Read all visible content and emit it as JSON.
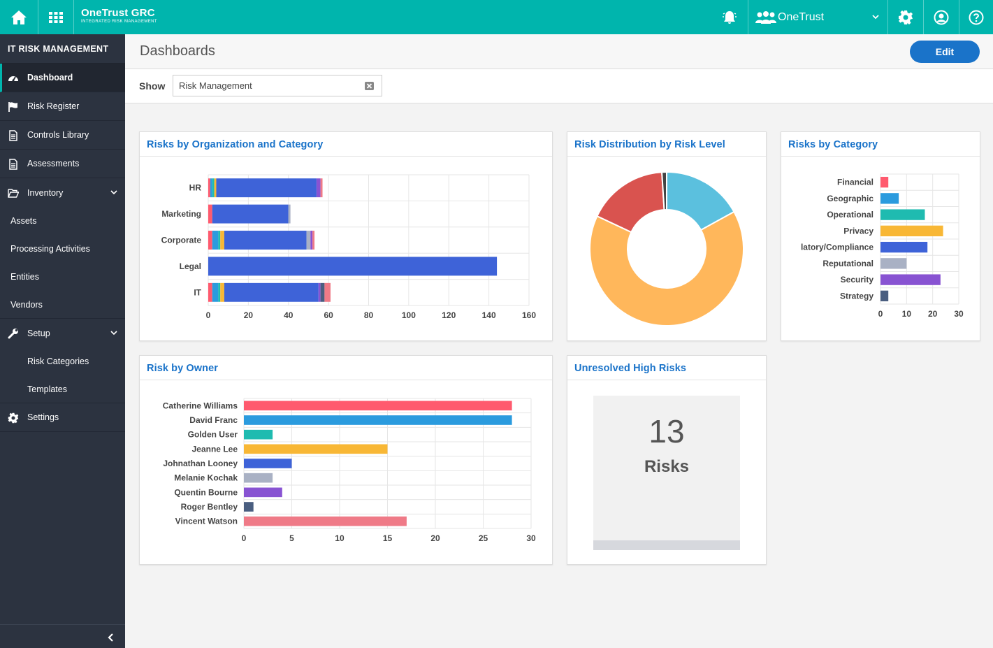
{
  "topbar": {
    "brand_name": "OneTrust GRC",
    "brand_tagline": "INTEGRATED RISK MANAGEMENT",
    "org_name": "OneTrust"
  },
  "sidebar": {
    "title": "IT RISK MANAGEMENT",
    "items": [
      {
        "label": "Dashboard"
      },
      {
        "label": "Risk Register"
      },
      {
        "label": "Controls Library"
      },
      {
        "label": "Assessments"
      },
      {
        "label": "Inventory"
      },
      {
        "label": "Assets"
      },
      {
        "label": "Processing Activities"
      },
      {
        "label": "Entities"
      },
      {
        "label": "Vendors"
      },
      {
        "label": "Setup"
      },
      {
        "label": "Risk Categories"
      },
      {
        "label": "Templates"
      },
      {
        "label": "Settings"
      }
    ]
  },
  "header": {
    "title": "Dashboards",
    "edit_label": "Edit"
  },
  "filter": {
    "show_label": "Show",
    "selected": "Risk Management"
  },
  "colors": {
    "teal": "#00b5ad",
    "accent_blue": "#1a73c9",
    "sidebar_bg": "#2c3340",
    "segments": [
      "#ff5a6e",
      "#2b9bde",
      "#1fbbb0",
      "#f8b735",
      "#3e63d8",
      "#a9b1c4",
      "#8853d2",
      "#4a5e80",
      "#ef7a87"
    ]
  },
  "cards": {
    "org_category": {
      "title": "Risks by Organization and Category"
    },
    "distribution": {
      "title": "Risk Distribution by Risk Level"
    },
    "category": {
      "title": "Risks by Category"
    },
    "owner": {
      "title": "Risk by Owner"
    },
    "unresolved": {
      "title": "Unresolved High Risks",
      "count": "13",
      "label": "Risks"
    }
  },
  "chart_data": [
    {
      "id": "org_category",
      "type": "bar",
      "orientation": "horizontal",
      "stacked": true,
      "categories": [
        "HR",
        "Marketing",
        "Corporate",
        "Legal",
        "IT"
      ],
      "segments": [
        [
          [
            0,
            1
          ],
          [
            1,
            2
          ],
          [
            2,
            3
          ],
          [
            3,
            4
          ],
          [
            4,
            54
          ],
          [
            6,
            56
          ],
          [
            8,
            57
          ]
        ],
        [
          [
            0,
            2
          ],
          [
            4,
            40
          ],
          [
            5,
            41
          ]
        ],
        [
          [
            0,
            2
          ],
          [
            1,
            5
          ],
          [
            2,
            6
          ],
          [
            3,
            8
          ],
          [
            4,
            49
          ],
          [
            5,
            51
          ],
          [
            6,
            52
          ],
          [
            8,
            53
          ]
        ],
        [
          [
            4,
            144
          ]
        ],
        [
          [
            0,
            2
          ],
          [
            1,
            5
          ],
          [
            2,
            6
          ],
          [
            3,
            8
          ],
          [
            4,
            55
          ],
          [
            6,
            56
          ],
          [
            7,
            58
          ],
          [
            8,
            61
          ]
        ]
      ],
      "xlim": [
        0,
        160
      ],
      "xticks": [
        "0",
        "20",
        "40",
        "60",
        "80",
        "100",
        "120",
        "140",
        "160"
      ],
      "grid": true
    },
    {
      "id": "distribution",
      "type": "pie",
      "donut": true,
      "slices": [
        {
          "value": 17,
          "color": "#5bc0de"
        },
        {
          "value": 65,
          "color": "#ffb75b"
        },
        {
          "value": 17,
          "color": "#d9534f"
        },
        {
          "value": 1,
          "color": "#444444"
        }
      ]
    },
    {
      "id": "category",
      "type": "bar",
      "orientation": "horizontal",
      "categories": [
        "Financial",
        "Geographic",
        "Operational",
        "Privacy",
        "latory/Compliance",
        "Reputational",
        "Security",
        "Strategy"
      ],
      "values": [
        3,
        7,
        17,
        24,
        18,
        10,
        23,
        3
      ],
      "colors": [
        "#ff5a6e",
        "#2b9bde",
        "#1fbbb0",
        "#f8b735",
        "#3e63d8",
        "#a9b1c4",
        "#8853d2",
        "#4a5e80"
      ],
      "xlim": [
        0,
        30
      ],
      "xticks": [
        "0",
        "10",
        "20",
        "30"
      ],
      "grid": true
    },
    {
      "id": "owner",
      "type": "bar",
      "orientation": "horizontal",
      "categories": [
        "Catherine Williams",
        "David Franc",
        "Golden User",
        "Jeanne Lee",
        "Johnathan Looney",
        "Melanie Kochak",
        "Quentin Bourne",
        "Roger Bentley",
        "Vincent Watson"
      ],
      "values": [
        28,
        28,
        3,
        15,
        5,
        3,
        4,
        1,
        17
      ],
      "colors": [
        "#ff5a6e",
        "#2b9bde",
        "#1fbbb0",
        "#f8b735",
        "#3e63d8",
        "#a9b1c4",
        "#8853d2",
        "#4a5e80",
        "#ef7a87"
      ],
      "xlim": [
        0,
        30
      ],
      "xticks": [
        "0",
        "5",
        "10",
        "15",
        "20",
        "25",
        "30"
      ],
      "grid": true
    }
  ]
}
